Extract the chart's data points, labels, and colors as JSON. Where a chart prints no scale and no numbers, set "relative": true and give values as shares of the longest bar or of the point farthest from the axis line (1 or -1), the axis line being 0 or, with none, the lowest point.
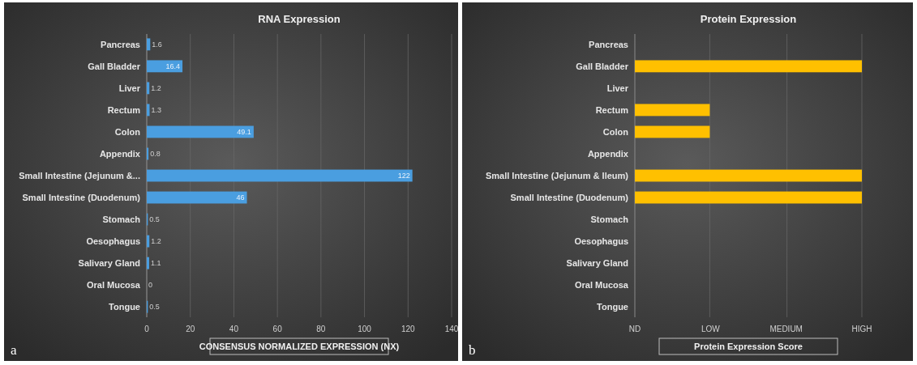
{
  "chart_data": [
    {
      "type": "bar",
      "orientation": "horizontal",
      "title": "RNA Expression",
      "xlabel": "CONSENSUS NORMALIZED EXPRESSION (NX)",
      "categories": [
        "Pancreas",
        "Gall Bladder",
        "Liver",
        "Rectum",
        "Colon",
        "Appendix",
        "Small Intestine (Jejunum &...",
        "Small Intestine (Duodenum)",
        "Stomach",
        "Oesophagus",
        "Salivary Gland",
        "Oral Mucosa",
        "Tongue"
      ],
      "values": [
        1.6,
        16.4,
        1.2,
        1.3,
        49.1,
        0.8,
        122,
        46,
        0.5,
        1.2,
        1.1,
        0,
        0.5
      ],
      "color": "#4a9ee0",
      "xlim": [
        0,
        140
      ],
      "xticks": [
        0,
        20,
        40,
        60,
        80,
        100,
        120,
        140
      ],
      "grid": "x",
      "data_labels": true,
      "annotations": [
        "a"
      ]
    },
    {
      "type": "bar",
      "orientation": "horizontal",
      "relative": true,
      "title": "Protein Expression",
      "xlabel": "Protein Expression Score",
      "categories": [
        "Pancreas",
        "Gall Bladder",
        "Liver",
        "Rectum",
        "Colon",
        "Appendix",
        "Small Intestine (Jejunum & Ileum)",
        "Small Intestine (Duodenum)",
        "Stomach",
        "Oesophagus",
        "Salivary Gland",
        "Oral Mucosa",
        "Tongue"
      ],
      "values": [
        0,
        1,
        0,
        0.33,
        0.33,
        0,
        1,
        1,
        0,
        0,
        0,
        0,
        0
      ],
      "color": "#ffc000",
      "ref_lines": [
        {
          "axis": "x",
          "value": 0.33,
          "color": "#6a6a6a"
        },
        {
          "axis": "x",
          "value": 0.67,
          "color": "#6a6a6a"
        },
        {
          "axis": "x",
          "value": 1,
          "color": "#6a6a6a"
        }
      ],
      "annotations": [
        "b",
        "ND",
        "LOW",
        "MEDIUM",
        "HIGH"
      ]
    }
  ]
}
